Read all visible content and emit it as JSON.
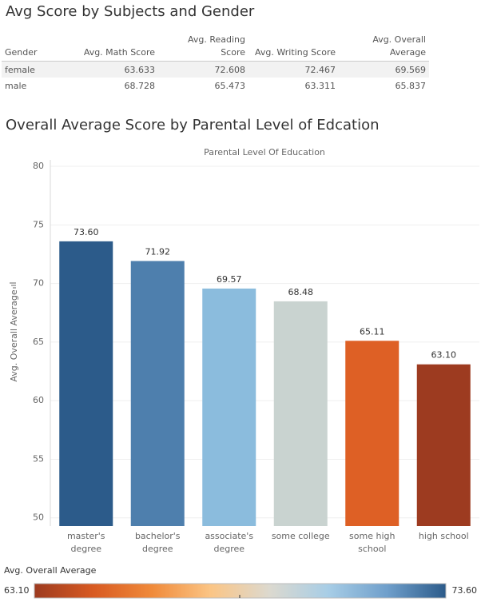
{
  "table": {
    "title": "Avg Score by Subjects and Gender",
    "headers": [
      "Gender",
      "Avg. Math Score",
      "Avg. Reading Score",
      "Avg. Writing Score",
      "Avg. Overall Average"
    ],
    "rows": [
      [
        "female",
        63.633,
        72.608,
        72.467,
        69.569
      ],
      [
        "male",
        68.728,
        65.473,
        63.311,
        65.837
      ]
    ]
  },
  "chart_data": {
    "type": "bar",
    "title": "Overall Average Score by Parental Level of Edcation",
    "x_header": "Parental Level Of Education",
    "y_label": "Avg. Overall Average",
    "categories": [
      "master's degree",
      "bachelor's degree",
      "associate's degree",
      "some college",
      "some high school",
      "high school"
    ],
    "values": [
      73.6,
      71.92,
      69.57,
      68.48,
      65.11,
      63.1
    ],
    "value_labels": [
      "73.60",
      "71.92",
      "69.57",
      "68.48",
      "65.11",
      "63.10"
    ],
    "colors": [
      "#2c5b8a",
      "#4e7fad",
      "#8bbcdd",
      "#c9d3d0",
      "#de6025",
      "#9d3b20"
    ],
    "ylim": [
      49.3,
      80.55
    ],
    "yticks": [
      50,
      55,
      60,
      65,
      70,
      75,
      80
    ],
    "grid": true,
    "color_legend": {
      "title": "Avg. Overall Average",
      "min": {
        "value": 63.1,
        "label": "63.10"
      },
      "max": {
        "value": 73.6,
        "label": "73.60"
      },
      "ramp": [
        "#9d3b20",
        "#d85a22",
        "#f08a3a",
        "#fbc585",
        "#dcd9cf",
        "#a7cde6",
        "#6f9fcb",
        "#2c5b8a"
      ]
    }
  }
}
